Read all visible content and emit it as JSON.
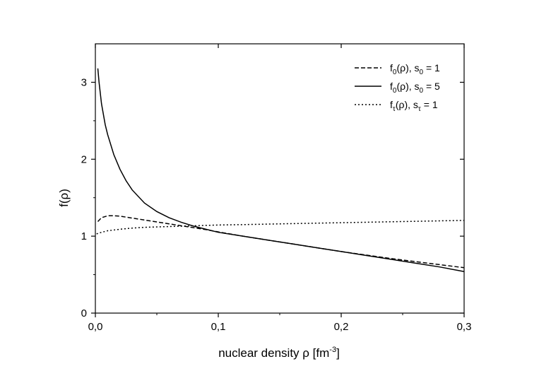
{
  "chart_data": {
    "type": "line",
    "title": "",
    "xlabel": {
      "prefix": "nuclear density ρ [fm",
      "sup": "-3",
      "suffix": "]"
    },
    "ylabel": "f(ρ)",
    "xlim": [
      0.0,
      0.3
    ],
    "ylim": [
      0,
      3.5
    ],
    "xticks": [
      0.0,
      0.1,
      0.2,
      0.3
    ],
    "xtick_labels": [
      "0,0",
      "0,1",
      "0,2",
      "0,3"
    ],
    "yticks": [
      0,
      1,
      2,
      3
    ],
    "ytick_labels": [
      "0",
      "1",
      "2",
      "3"
    ],
    "grid": false,
    "legend_position": "top-right",
    "series": [
      {
        "id": "f0-s1",
        "style": "dashed",
        "legend": {
          "f": "f",
          "fsub": "0",
          "arg": "(ρ), s",
          "ssub": "0",
          "eq": " = 1"
        },
        "x": [
          0.002,
          0.005,
          0.01,
          0.015,
          0.02,
          0.03,
          0.04,
          0.05,
          0.06,
          0.07,
          0.08,
          0.09,
          0.1,
          0.12,
          0.14,
          0.16,
          0.18,
          0.2,
          0.22,
          0.24,
          0.26,
          0.28,
          0.3
        ],
        "y": [
          1.19,
          1.24,
          1.265,
          1.265,
          1.26,
          1.235,
          1.21,
          1.185,
          1.16,
          1.135,
          1.11,
          1.085,
          1.055,
          1.0,
          0.95,
          0.9,
          0.85,
          0.8,
          0.755,
          0.71,
          0.67,
          0.63,
          0.59
        ]
      },
      {
        "id": "f0-s5",
        "style": "solid",
        "legend": {
          "f": "f",
          "fsub": "0",
          "arg": "(ρ), s",
          "ssub": "0",
          "eq": " = 5"
        },
        "x": [
          0.002,
          0.003,
          0.005,
          0.008,
          0.01,
          0.015,
          0.02,
          0.025,
          0.03,
          0.04,
          0.05,
          0.06,
          0.07,
          0.08,
          0.09,
          0.1,
          0.12,
          0.14,
          0.16,
          0.18,
          0.2,
          0.22,
          0.24,
          0.26,
          0.28,
          0.3
        ],
        "y": [
          3.18,
          3.0,
          2.72,
          2.45,
          2.32,
          2.06,
          1.87,
          1.72,
          1.6,
          1.43,
          1.32,
          1.24,
          1.18,
          1.13,
          1.09,
          1.05,
          1.0,
          0.95,
          0.9,
          0.85,
          0.8,
          0.75,
          0.7,
          0.65,
          0.6,
          0.54
        ]
      },
      {
        "id": "ftau-s1",
        "style": "dotted",
        "legend": {
          "f": "f",
          "fsub": "τ",
          "arg": "(ρ), s",
          "ssub": "τ",
          "eq": " = 1"
        },
        "x": [
          0.001,
          0.005,
          0.01,
          0.02,
          0.03,
          0.04,
          0.05,
          0.06,
          0.08,
          0.1,
          0.12,
          0.15,
          0.2,
          0.25,
          0.3
        ],
        "y": [
          1.03,
          1.05,
          1.07,
          1.09,
          1.105,
          1.115,
          1.12,
          1.125,
          1.135,
          1.145,
          1.15,
          1.16,
          1.175,
          1.19,
          1.205
        ]
      }
    ]
  }
}
